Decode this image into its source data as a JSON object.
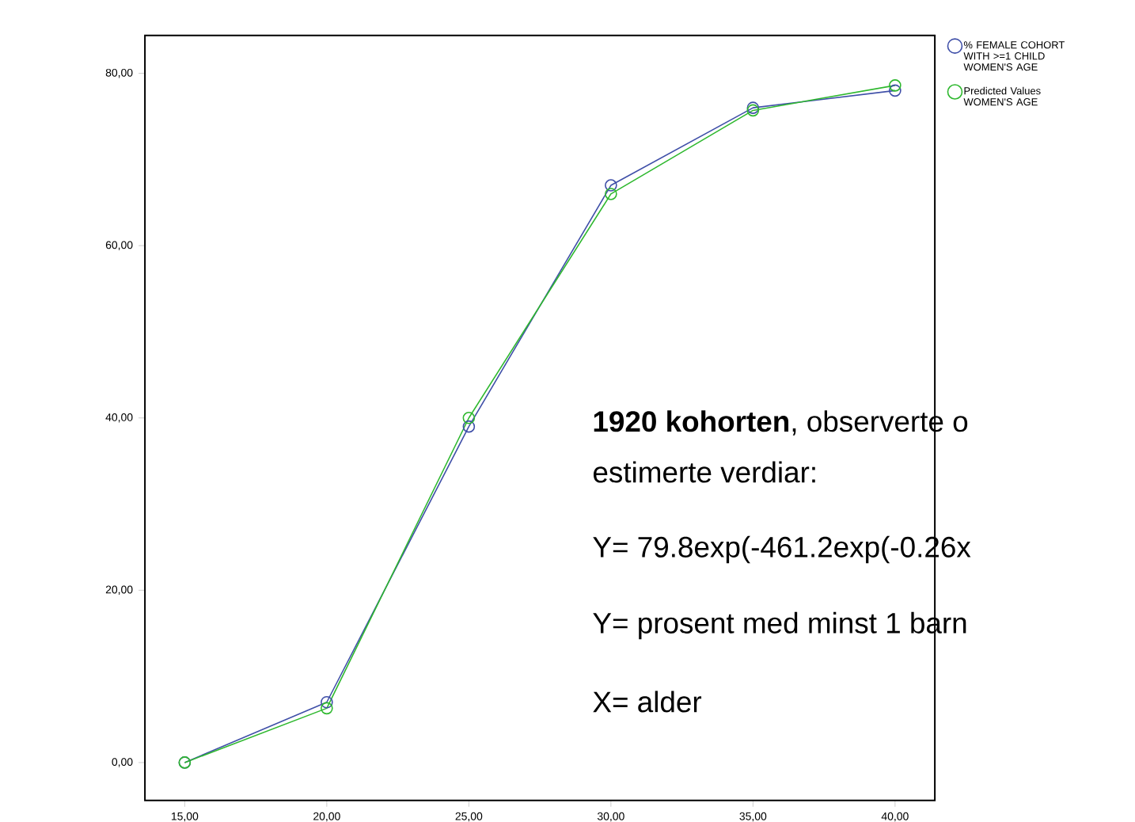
{
  "chart_data": {
    "type": "line",
    "x": [
      15,
      20,
      25,
      30,
      35,
      40
    ],
    "series": [
      {
        "name": "% FEMALE COHORT WITH >=1 CHILD WOMEN'S AGE",
        "color": "#3f4fa8",
        "values": [
          0,
          7,
          39,
          67,
          76,
          78
        ]
      },
      {
        "name": "Predicted Values WOMEN'S AGE",
        "color": "#2eb82e",
        "values": [
          0,
          6.3,
          40,
          66,
          75.7,
          78.6
        ]
      }
    ],
    "xlim": [
      13.6,
      41.4
    ],
    "ylim": [
      -4.4,
      84.4
    ],
    "xticks": [
      {
        "value": 15,
        "label": "15,00"
      },
      {
        "value": 20,
        "label": "20,00"
      },
      {
        "value": 25,
        "label": "25,00"
      },
      {
        "value": 30,
        "label": "30,00"
      },
      {
        "value": 35,
        "label": "35,00"
      },
      {
        "value": 40,
        "label": "40,00"
      }
    ],
    "yticks": [
      {
        "value": 0,
        "label": "0,00"
      },
      {
        "value": 20,
        "label": "20,00"
      },
      {
        "value": 40,
        "label": "40,00"
      },
      {
        "value": 60,
        "label": "60,00"
      },
      {
        "value": 80,
        "label": "80,00"
      }
    ],
    "grid": false,
    "legend": "top right",
    "marker": "circle",
    "line_style": "solid",
    "annotations": [
      "**1920 kohorten**, observerte o",
      "estimerte verdiar:",
      "Y= 79.8exp(-461.2exp(-0.26x",
      "Y= prosent med minst 1 barn",
      "X= alder"
    ]
  }
}
